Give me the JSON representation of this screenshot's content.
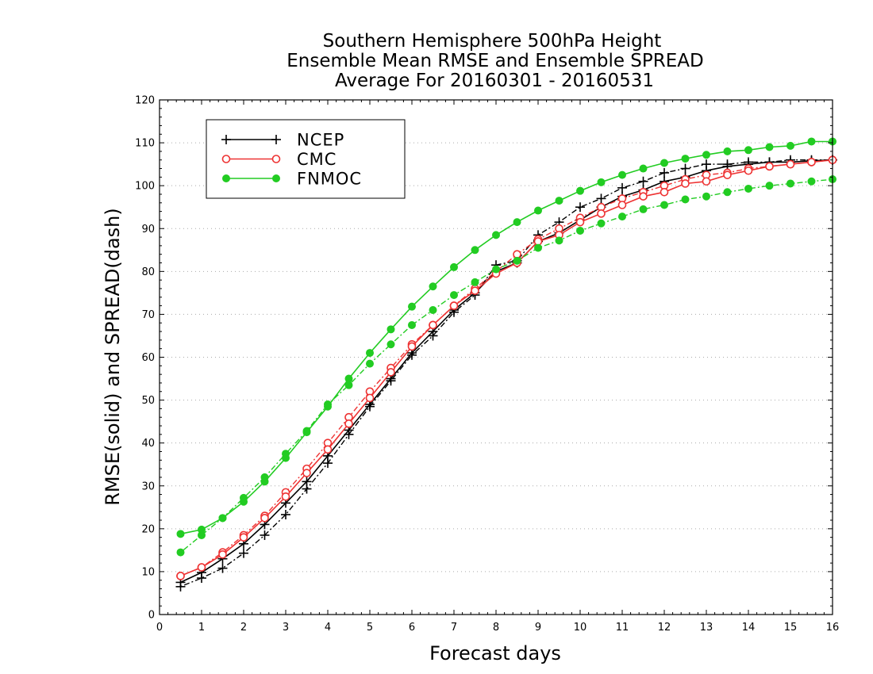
{
  "chart_data": {
    "type": "line",
    "title": [
      "Southern Hemisphere 500hPa Height",
      "Ensemble Mean RMSE and Ensemble SPREAD",
      "Average For 20160301 - 20160531"
    ],
    "xlabel": "Forecast days",
    "ylabel": "RMSE(solid) and SPREAD(dash)",
    "xlim": [
      0,
      16
    ],
    "ylim": [
      0,
      120
    ],
    "xticks": [
      "0",
      "1",
      "2",
      "3",
      "4",
      "5",
      "6",
      "7",
      "8",
      "9",
      "10",
      "11",
      "12",
      "13",
      "14",
      "15",
      "16"
    ],
    "yticks": [
      "0",
      "10",
      "20",
      "30",
      "40",
      "50",
      "60",
      "70",
      "80",
      "90",
      "100",
      "110",
      "120"
    ],
    "grid": true,
    "legend_position": "top-left",
    "x": [
      0.5,
      1,
      1.5,
      2,
      2.5,
      3,
      3.5,
      4,
      4.5,
      5,
      5.5,
      6,
      6.5,
      7,
      7.5,
      8,
      8.5,
      9,
      9.5,
      10,
      10.5,
      11,
      11.5,
      12,
      12.5,
      13,
      13.5,
      14,
      14.5,
      15,
      15.5,
      16
    ],
    "series": [
      {
        "name": "NCEP",
        "color": "#000000",
        "marker": "plus",
        "rmse": [
          7.5,
          9.8,
          13,
          16.5,
          21,
          26,
          31,
          37,
          43,
          49,
          55,
          61,
          66,
          71,
          75,
          80,
          82,
          87,
          89,
          92,
          95,
          97.5,
          99,
          101,
          102,
          103.5,
          104.5,
          105,
          105.5,
          105.5,
          105.8,
          106
        ],
        "spread": [
          6.5,
          8.5,
          10.8,
          14.3,
          18.5,
          23.3,
          29.3,
          35.3,
          42,
          48.5,
          54.5,
          60.5,
          65,
          70.5,
          74.5,
          81.5,
          82.5,
          88.5,
          91.5,
          95,
          97,
          99.5,
          101,
          103,
          104,
          105,
          105,
          105.5,
          105.5,
          106,
          106,
          106
        ]
      },
      {
        "name": "CMC",
        "color": "#ee3333",
        "marker": "open-circle",
        "rmse": [
          9,
          11,
          14,
          18,
          22.5,
          27.5,
          33,
          38.5,
          44.5,
          50.5,
          56.5,
          62.5,
          67.5,
          72,
          75.5,
          79.5,
          82,
          87,
          88.5,
          91.5,
          93.5,
          95.5,
          97.5,
          98.5,
          100.5,
          101,
          102.5,
          103.5,
          104.5,
          105,
          105.5,
          106
        ],
        "spread": [
          9,
          11,
          14.5,
          18.5,
          23,
          28.5,
          34,
          40,
          46,
          52,
          57.5,
          63,
          67.5,
          72,
          76,
          80,
          84,
          87.5,
          90,
          92.5,
          95,
          97,
          98.5,
          100,
          101.5,
          102.5,
          103,
          104,
          104.5,
          105,
          105.5,
          106
        ]
      },
      {
        "name": "FNMOC",
        "color": "#22cc22",
        "marker": "filled-circle",
        "rmse": [
          18.8,
          19.8,
          22.5,
          26.3,
          31,
          36.5,
          42.5,
          48.5,
          55,
          61,
          66.5,
          71.8,
          76.5,
          81,
          85,
          88.5,
          91.5,
          94.2,
          96.5,
          98.8,
          100.8,
          102.5,
          104,
          105.3,
          106.3,
          107.2,
          108,
          108.3,
          109,
          109.3,
          110.3,
          110.3
        ],
        "spread": [
          14.5,
          18.5,
          22.5,
          27.2,
          32,
          37.5,
          42.8,
          49,
          53.5,
          58.5,
          63,
          67.5,
          71,
          74.5,
          77.5,
          80.5,
          82.5,
          85.5,
          87.2,
          89.5,
          91.2,
          92.8,
          94.5,
          95.5,
          96.8,
          97.5,
          98.5,
          99.3,
          100,
          100.5,
          101,
          101.5
        ]
      }
    ]
  }
}
